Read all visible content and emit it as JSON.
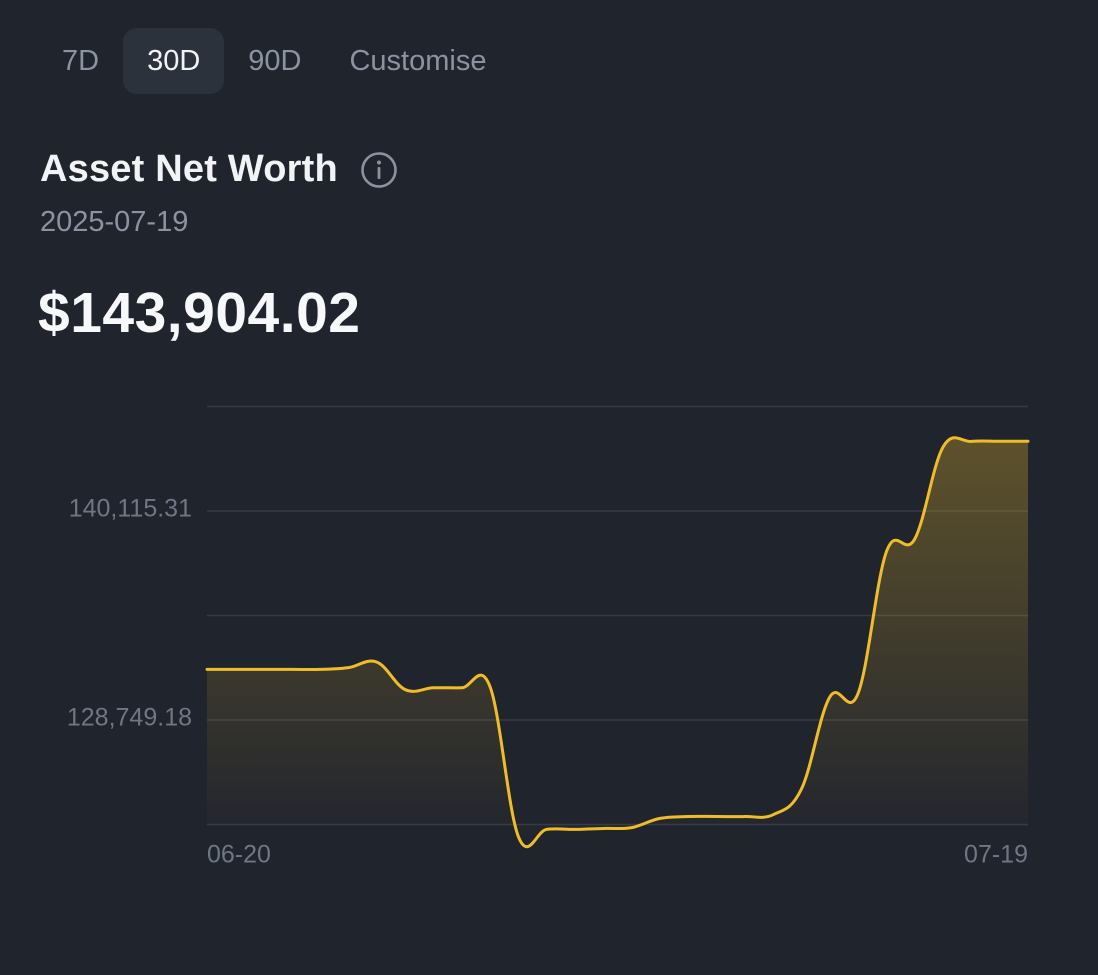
{
  "tabs": [
    {
      "label": "7D",
      "active": false
    },
    {
      "label": "30D",
      "active": true
    },
    {
      "label": "90D",
      "active": false
    },
    {
      "label": "Customise",
      "active": false
    }
  ],
  "header": {
    "title": "Asset Net Worth",
    "info_icon": "info-circle-icon",
    "date": "2025-07-19",
    "amount": "$143,904.02"
  },
  "colors": {
    "background": "#20242d",
    "line": "#f0bd2a",
    "grid": "#353b46",
    "muted_text": "#6f7684"
  },
  "chart_data": {
    "type": "area",
    "ytick_labels": [
      "140,115.31",
      "128,749.18"
    ],
    "ytick_values": [
      140115.31,
      128749.18
    ],
    "xtick_labels": [
      "06-20",
      "07-19"
    ],
    "x": [
      "06-20",
      "06-21",
      "06-22",
      "06-23",
      "06-24",
      "06-25",
      "06-26",
      "06-27",
      "06-28",
      "06-29",
      "06-30",
      "07-01",
      "07-02",
      "07-03",
      "07-04",
      "07-05",
      "07-06",
      "07-07",
      "07-08",
      "07-09",
      "07-10",
      "07-11",
      "07-12",
      "07-13",
      "07-14",
      "07-15",
      "07-16",
      "07-17",
      "07-18",
      "07-19"
    ],
    "values": [
      131500,
      131500,
      131500,
      131500,
      131500,
      131600,
      131900,
      130400,
      130500,
      130500,
      130550,
      122400,
      122800,
      122800,
      122850,
      122900,
      123400,
      123500,
      123500,
      123500,
      123600,
      125000,
      130000,
      130200,
      137900,
      138600,
      143600,
      143900,
      143904,
      143904.02
    ],
    "ylim": [
      121000,
      147000
    ],
    "grid": true,
    "legend": "none"
  }
}
